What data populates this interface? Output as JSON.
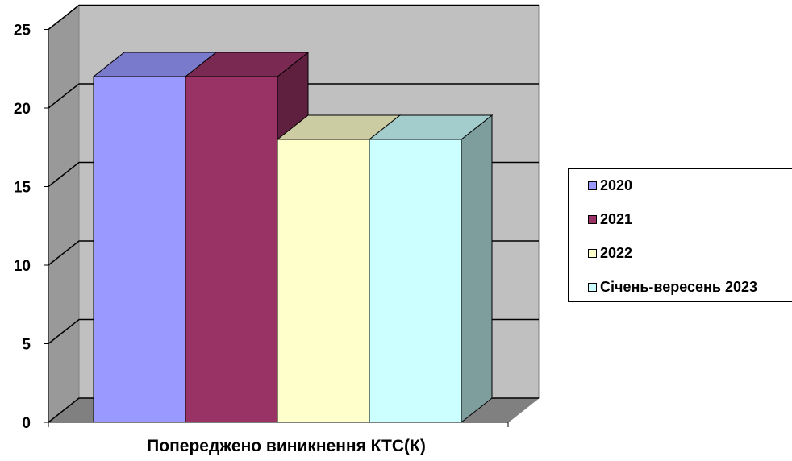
{
  "chart_data": {
    "type": "bar",
    "style": "3d-clustered-column",
    "title": "",
    "xlabel": "",
    "ylabel": "",
    "categories": [
      "Попереджено виникнення КТС(К)"
    ],
    "series": [
      {
        "name": "2020",
        "values": [
          22
        ],
        "color": "#9999FF"
      },
      {
        "name": "2021",
        "values": [
          22
        ],
        "color": "#993366"
      },
      {
        "name": "2022",
        "values": [
          18
        ],
        "color": "#FFFFCC"
      },
      {
        "name": "Січень-вересень 2023",
        "values": [
          18
        ],
        "color": "#CCFFFF"
      }
    ],
    "ylim": [
      0,
      25
    ],
    "yticks": [
      "0",
      "5",
      "10",
      "15",
      "20",
      "25"
    ],
    "grid": true,
    "legend_position": "right",
    "wall_color": "#C0C0C0",
    "floor_color": "#808080"
  }
}
